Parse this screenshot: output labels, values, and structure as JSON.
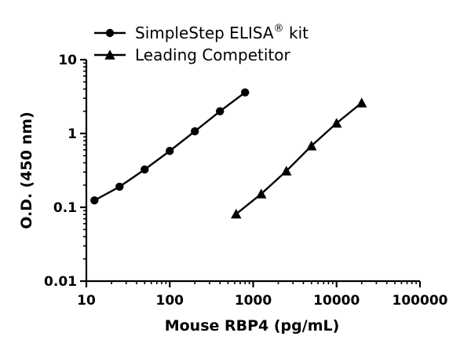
{
  "chart_data": {
    "type": "line",
    "title": "",
    "xlabel": "Mouse RBP4 (pg/mL)",
    "ylabel": "O.D. (450 nm)",
    "xscale": "log",
    "yscale": "log",
    "xlim": [
      10,
      100000
    ],
    "ylim": [
      0.01,
      10
    ],
    "x_ticks": [
      "10",
      "100",
      "1000",
      "10000",
      "100000"
    ],
    "y_ticks": [
      "0.01",
      "0.1",
      "1",
      "10"
    ],
    "grid": false,
    "legend_position": "top-left",
    "series": [
      {
        "name": "SimpleStep ELISA",
        "name_superscript": "®",
        "name_suffix": " kit",
        "marker": "circle",
        "color": "#000000",
        "x": [
          12.5,
          25,
          50,
          100,
          200,
          400,
          800
        ],
        "y": [
          0.124,
          0.19,
          0.325,
          0.58,
          1.07,
          2.0,
          3.6
        ]
      },
      {
        "name": "Leading Competitor",
        "marker": "triangle",
        "color": "#000000",
        "x": [
          625,
          1250,
          2500,
          5000,
          10000,
          20000
        ],
        "y": [
          0.081,
          0.152,
          0.31,
          0.68,
          1.38,
          2.6
        ]
      }
    ]
  }
}
